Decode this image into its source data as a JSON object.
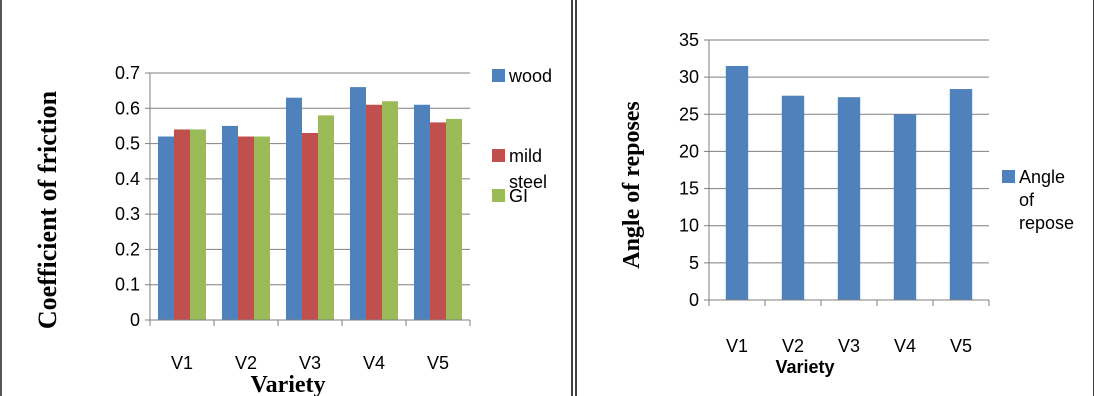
{
  "chart_data": [
    {
      "type": "bar",
      "categories": [
        "V1",
        "V2",
        "V3",
        "V4",
        "V5"
      ],
      "series": [
        {
          "name": "wood",
          "values": [
            0.52,
            0.55,
            0.63,
            0.66,
            0.61
          ],
          "color": "#4F81BD"
        },
        {
          "name": "mild steel",
          "values": [
            0.54,
            0.52,
            0.53,
            0.61,
            0.56
          ],
          "color": "#C0504D"
        },
        {
          "name": "GI",
          "values": [
            0.54,
            0.52,
            0.58,
            0.62,
            0.57
          ],
          "color": "#9BBB59"
        }
      ],
      "legend_lines": [
        [
          "wood"
        ],
        [
          "mild",
          "steel"
        ],
        [
          "GI"
        ]
      ],
      "title": "",
      "xlabel": "Variety",
      "ylabel": "Coefficient of friction",
      "ylim": [
        0,
        0.7
      ],
      "yticks": [
        "0",
        "0.1",
        "0.2",
        "0.3",
        "0.4",
        "0.5",
        "0.6",
        "0.7"
      ],
      "grid": true,
      "legend": "right"
    },
    {
      "type": "bar",
      "categories": [
        "V1",
        "V2",
        "V3",
        "V4",
        "V5"
      ],
      "series": [
        {
          "name": "Angle of repose",
          "values": [
            31.5,
            27.5,
            27.3,
            25.0,
            28.4
          ],
          "color": "#4F81BD"
        }
      ],
      "legend_lines": [
        [
          "Angle",
          "of",
          "repose"
        ]
      ],
      "title": "",
      "xlabel": "Variety",
      "ylabel": "Angle of reposes",
      "ylim": [
        0,
        35
      ],
      "yticks": [
        "0",
        "5",
        "10",
        "15",
        "20",
        "25",
        "30",
        "35"
      ],
      "grid": true,
      "legend": "right"
    }
  ]
}
